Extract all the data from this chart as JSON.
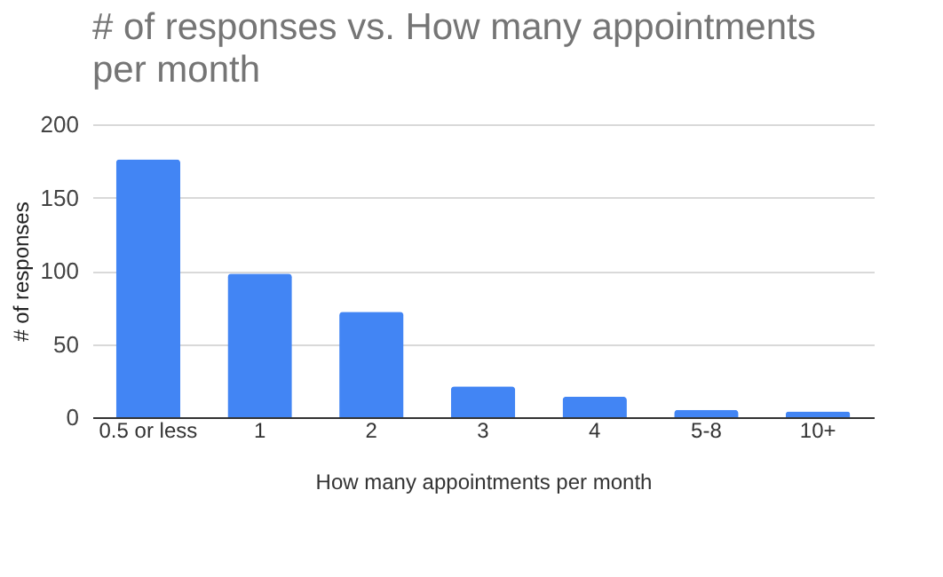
{
  "chart_data": {
    "type": "bar",
    "title": "# of responses vs. How many appointments per month",
    "xlabel": "How many appointments per month",
    "ylabel": "# of responses",
    "categories": [
      "0.5 or less",
      "1",
      "2",
      "3",
      "4",
      "5-8",
      "10+"
    ],
    "values": [
      176,
      98,
      72,
      21,
      14,
      5,
      4
    ],
    "color": "#4285f4",
    "ylim": [
      0,
      200
    ],
    "yticks": [
      0,
      50,
      100,
      150,
      200
    ],
    "grid": "y"
  }
}
